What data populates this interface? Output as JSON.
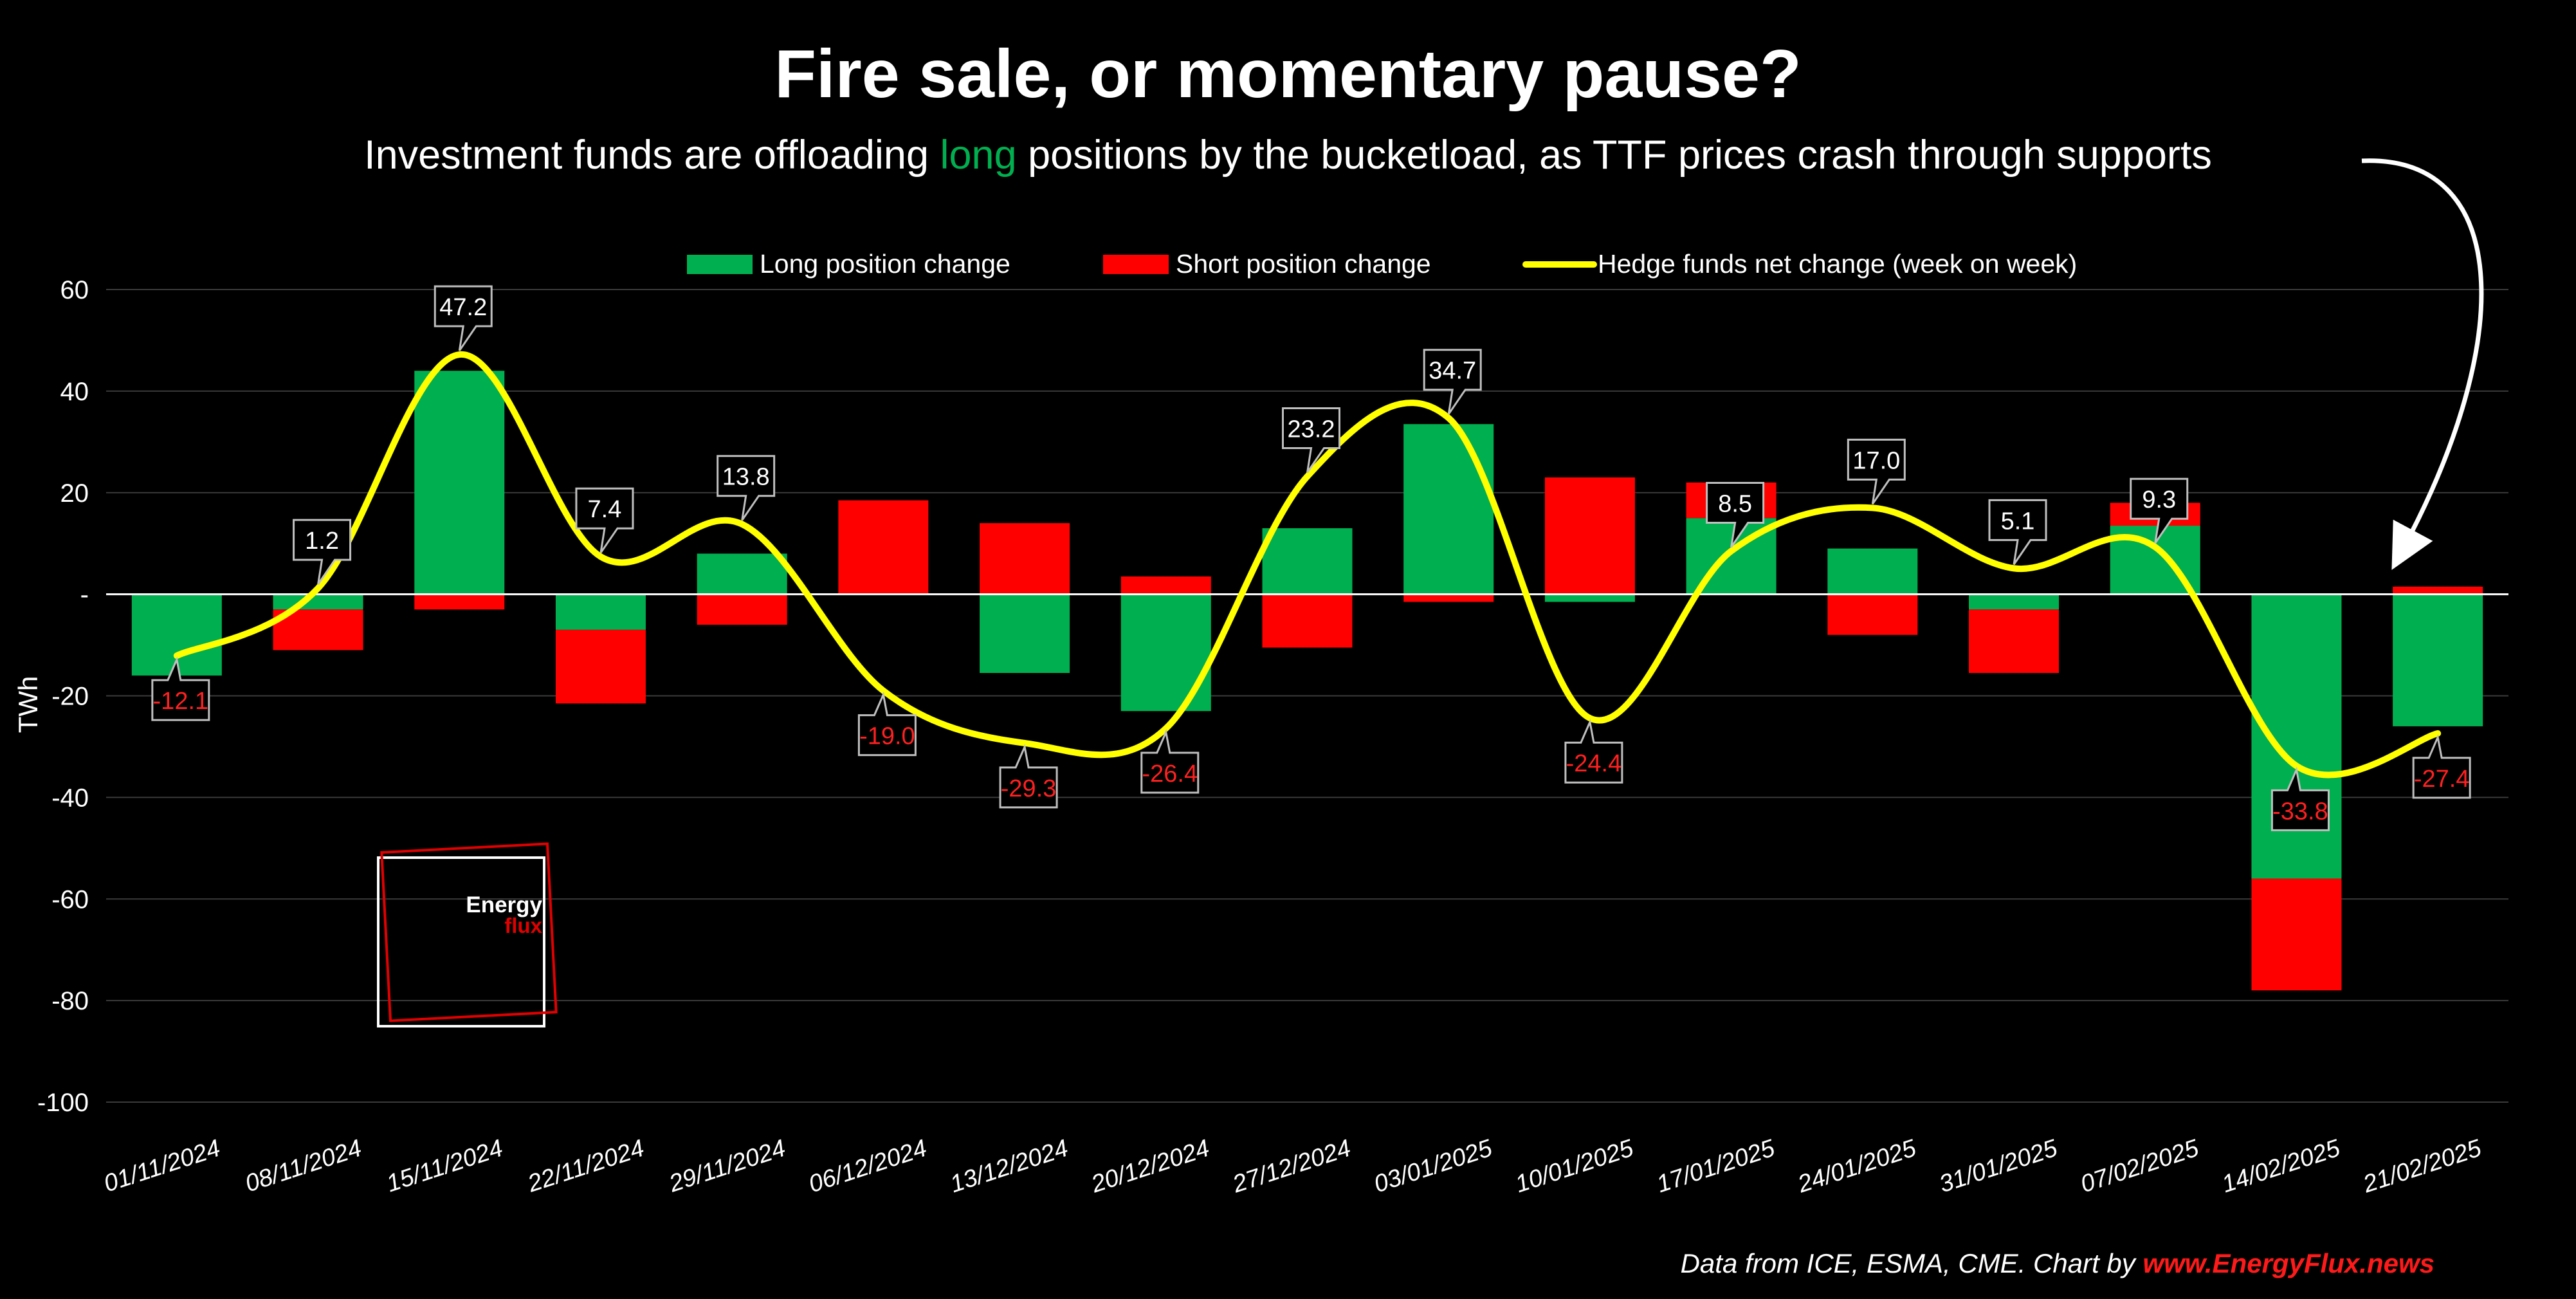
{
  "title": "Fire sale, or momentary pause?",
  "subtitle": {
    "before": "Investment funds are offloading ",
    "highlight": "long",
    "after": " positions by the bucketload, as TTF prices crash through supports"
  },
  "source": {
    "text": "Data from ICE, ESMA, CME. Chart by ",
    "brand": "www.EnergyFlux.news"
  },
  "logo": {
    "line1": "Energy",
    "line2": "flux"
  },
  "colors": {
    "long": "#00b050",
    "short": "#ff0000",
    "net": "#ffff00",
    "negative_label": "#ff2020",
    "highlight": "#00b050"
  },
  "chart_data": {
    "type": "bar",
    "ylabel": "TWh",
    "xlabel": "",
    "ylim": [
      -100,
      60
    ],
    "yticks": [
      60,
      40,
      20,
      0,
      -20,
      -40,
      -60,
      -80,
      -100
    ],
    "ytick_labels": [
      "60",
      "40",
      "20",
      "-",
      "-20",
      "-40",
      "-60",
      "-80",
      "-100"
    ],
    "grid": true,
    "legend_position": "top",
    "categories": [
      "01/11/2024",
      "08/11/2024",
      "15/11/2024",
      "22/11/2024",
      "29/11/2024",
      "06/12/2024",
      "13/12/2024",
      "20/12/2024",
      "27/12/2024",
      "03/01/2025",
      "10/01/2025",
      "17/01/2025",
      "24/01/2025",
      "31/01/2025",
      "07/02/2025",
      "14/02/2025",
      "21/02/2025"
    ],
    "series": [
      {
        "name": "Long position change",
        "kind": "bar",
        "values": [
          -16,
          -3,
          44,
          -7,
          8,
          0,
          -15.5,
          -23,
          13,
          33.5,
          -1.5,
          15,
          9,
          -3,
          13.5,
          -56,
          -26
        ]
      },
      {
        "name": "Short position change",
        "kind": "bar",
        "values": [
          0,
          -8,
          -3,
          -14.5,
          -6,
          18.5,
          14,
          3.5,
          -10.5,
          -1.5,
          23,
          7,
          -8,
          -12.5,
          4.5,
          -22,
          1.5
        ]
      },
      {
        "name": "Hedge funds net change (week on week)",
        "kind": "line",
        "values": [
          -12.1,
          1.2,
          47.2,
          7.4,
          13.8,
          -19.0,
          -29.3,
          -26.4,
          23.2,
          34.7,
          -24.4,
          8.5,
          17.0,
          5.1,
          9.3,
          -33.8,
          -27.4
        ]
      }
    ],
    "data_labels": [
      "-12.1",
      "1.2",
      "47.2",
      "7.4",
      "13.8",
      "-19.0",
      "-29.3",
      "-26.4",
      "23.2",
      "34.7",
      "-24.4",
      "8.5",
      "17.0",
      "5.1",
      "9.3",
      "-33.8",
      "-27.4"
    ]
  }
}
